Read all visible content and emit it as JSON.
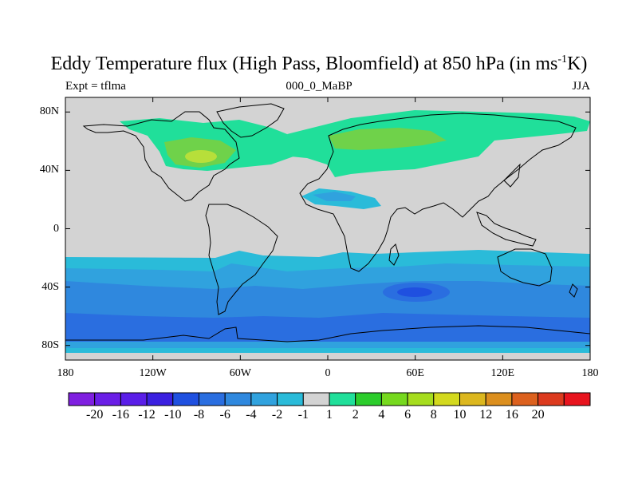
{
  "title": {
    "main": "Eddy Temperature flux (High Pass, Bloomfield) at 850 hPa (in ms",
    "sup": "-1",
    "end": "K)"
  },
  "subtitle": {
    "left": "Expt = tflma",
    "center": "000_0_MaBP",
    "right": "JJA"
  },
  "axes": {
    "x_ticks": [
      {
        "value": -180,
        "label": "180"
      },
      {
        "value": -120,
        "label": "120W"
      },
      {
        "value": -60,
        "label": "60W"
      },
      {
        "value": 0,
        "label": "0"
      },
      {
        "value": 60,
        "label": "60E"
      },
      {
        "value": 120,
        "label": "120E"
      },
      {
        "value": 180,
        "label": "180"
      }
    ],
    "y_ticks": [
      {
        "value": 80,
        "label": "80N"
      },
      {
        "value": 40,
        "label": "40N"
      },
      {
        "value": 0,
        "label": "0"
      },
      {
        "value": -40,
        "label": "40S"
      },
      {
        "value": -80,
        "label": "80S"
      }
    ],
    "xlim": [
      -180,
      180
    ],
    "ylim": [
      -90,
      90
    ]
  },
  "colorbar": {
    "colors": [
      "#7f1fe0",
      "#6a1ee6",
      "#5a1ee8",
      "#3b20e0",
      "#1f50e0",
      "#2a6ee0",
      "#2f88de",
      "#30a2de",
      "#2abbd9",
      "#d3d3d3",
      "#20df9a",
      "#2ccd2c",
      "#76d91e",
      "#a6dd1e",
      "#d3d91e",
      "#dcb71e",
      "#dc8f1e",
      "#dc611e",
      "#dc3a1e",
      "#e8141e"
    ],
    "labels": [
      "-20",
      "-16",
      "-12",
      "-10",
      "-8",
      "-6",
      "-4",
      "-2",
      "-1",
      "1",
      "2",
      "4",
      "6",
      "8",
      "10",
      "12",
      "16",
      "20"
    ]
  },
  "field_colors": {
    "land_ocean_zero": "#d3d3d3",
    "pos_weak": "#20df9a",
    "pos_mid": "#6fd24a",
    "pos_strong": "#b7df3a",
    "neg_1": "#2abbd9",
    "neg_2": "#30a2de",
    "neg_4": "#2f88de",
    "neg_6": "#2a6ee0",
    "neg_8": "#1f50e0"
  }
}
